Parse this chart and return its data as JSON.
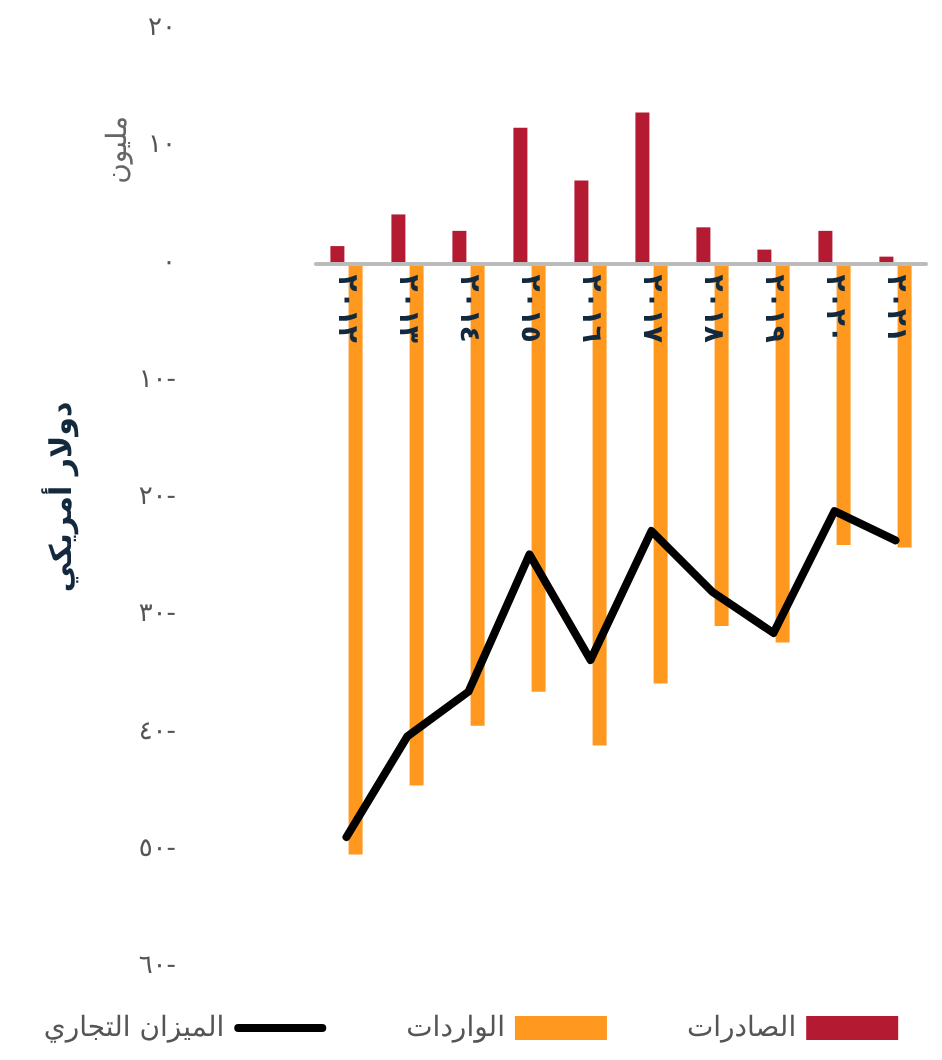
{
  "chart_data": {
    "type": "bar",
    "ylabel": "دولار أمريكي",
    "annotations": [
      "مليون"
    ],
    "categories": [
      "٢٠١٢",
      "٢٠١٣",
      "٢٠١٤",
      "٢٠١٥",
      "٢٠١٦",
      "٢٠١٧",
      "٢٠١٨",
      "٢٠١٩",
      "٢٠٢٠",
      "٢٠٢١"
    ],
    "series": [
      {
        "name": "الصادرات",
        "color": "#b51a33",
        "values": [
          1.4,
          4.1,
          2.7,
          11.5,
          7.0,
          12.8,
          3.0,
          1.1,
          2.7,
          0.5
        ]
      },
      {
        "name": "الواردات",
        "color": "#ff981f",
        "values": [
          -50.5,
          -44.6,
          -39.5,
          -36.6,
          -41.2,
          -35.9,
          -31.0,
          -32.4,
          -24.1,
          -24.3
        ]
      },
      {
        "name": "الميزان التجاري",
        "type": "line",
        "color": "#000000",
        "values": [
          -49.0,
          -40.4,
          -36.6,
          -24.9,
          -33.9,
          -22.9,
          -28.1,
          -31.6,
          -21.2,
          -23.7
        ]
      }
    ],
    "ylim": [
      -60,
      20
    ],
    "yticks": [
      {
        "value": -60,
        "label": "٦٠-"
      },
      {
        "value": -50,
        "label": "٥٠-"
      },
      {
        "value": -40,
        "label": "٤٠-"
      },
      {
        "value": -30,
        "label": "٣٠-"
      },
      {
        "value": -20,
        "label": "٢٠-"
      },
      {
        "value": -10,
        "label": "١٠-"
      },
      {
        "value": 0,
        "label": "٠"
      },
      {
        "value": 10,
        "label": "١٠"
      },
      {
        "value": 20,
        "label": "٢٠"
      }
    ],
    "grid": false,
    "legend": "bottom",
    "marker": "none",
    "line_style": "solid"
  }
}
